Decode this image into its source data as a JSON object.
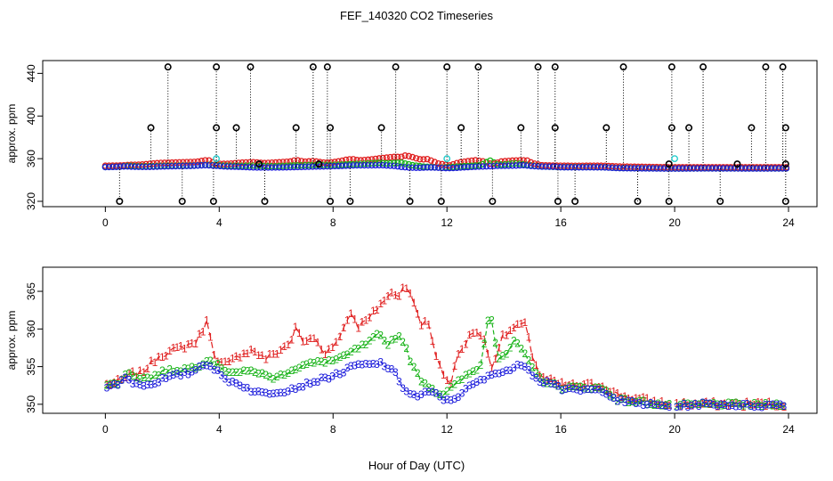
{
  "title": "FEF_140320  CO2 Timeseries",
  "xlabel": "Hour of Day (UTC)",
  "chart_data": [
    {
      "type": "scatter",
      "name": "top-panel",
      "ylabel": "approx. ppm",
      "xlim": [
        -2.2,
        25.0
      ],
      "ylim": [
        315,
        452
      ],
      "xticks": [
        0,
        4,
        8,
        12,
        16,
        20,
        24
      ],
      "yticks": [
        320,
        360,
        400,
        440
      ],
      "series": [
        {
          "name": "series-1",
          "color": "#e02020"
        },
        {
          "name": "series-2",
          "color": "#19b319"
        },
        {
          "name": "series-3",
          "color": "#1a1adb"
        },
        {
          "name": "series-4",
          "color": "#22cccc"
        },
        {
          "name": "flagged",
          "color": "#000000"
        }
      ],
      "flag_high": 446,
      "flag_mid": 389,
      "flag_low": 320,
      "flags": [
        [
          2.2,
          446
        ],
        [
          3.9,
          446
        ],
        [
          5.1,
          446
        ],
        [
          7.3,
          446
        ],
        [
          7.8,
          446
        ],
        [
          10.2,
          446
        ],
        [
          12.0,
          446
        ],
        [
          13.1,
          446
        ],
        [
          15.2,
          446
        ],
        [
          15.8,
          446
        ],
        [
          18.2,
          446
        ],
        [
          19.9,
          446
        ],
        [
          21.0,
          446
        ],
        [
          23.2,
          446
        ],
        [
          23.8,
          446
        ],
        [
          1.6,
          389
        ],
        [
          3.9,
          389
        ],
        [
          4.6,
          389
        ],
        [
          6.7,
          389
        ],
        [
          7.9,
          389
        ],
        [
          9.7,
          389
        ],
        [
          12.5,
          389
        ],
        [
          14.6,
          389
        ],
        [
          15.8,
          389
        ],
        [
          17.6,
          389
        ],
        [
          19.9,
          389
        ],
        [
          20.5,
          389
        ],
        [
          22.7,
          389
        ],
        [
          23.9,
          389
        ],
        [
          0.5,
          320
        ],
        [
          2.7,
          320
        ],
        [
          3.8,
          320
        ],
        [
          5.6,
          320
        ],
        [
          7.9,
          320
        ],
        [
          8.6,
          320
        ],
        [
          10.7,
          320
        ],
        [
          11.8,
          320
        ],
        [
          13.6,
          320
        ],
        [
          15.9,
          320
        ],
        [
          16.5,
          320
        ],
        [
          18.7,
          320
        ],
        [
          19.8,
          320
        ],
        [
          21.6,
          320
        ],
        [
          23.9,
          320
        ],
        [
          5.4,
          355
        ],
        [
          7.5,
          355
        ],
        [
          19.8,
          355
        ],
        [
          22.2,
          355
        ],
        [
          23.9,
          355
        ]
      ],
      "cyan_points": [
        [
          3.9,
          360
        ],
        [
          12.0,
          360
        ],
        [
          20.0,
          360
        ]
      ]
    },
    {
      "type": "line",
      "name": "bottom-panel",
      "ylabel": "approx. ppm",
      "xlim": [
        -2.2,
        25.0
      ],
      "ylim": [
        348.8,
        368.2
      ],
      "xticks": [
        0,
        4,
        8,
        12,
        16,
        20,
        24
      ],
      "yticks": [
        350,
        355,
        360,
        365
      ],
      "series": [
        {
          "name": "1",
          "color": "#e02020",
          "knots": [
            [
              0,
              352.6
            ],
            [
              0.5,
              353
            ],
            [
              0.9,
              354
            ],
            [
              1.2,
              354
            ],
            [
              1.5,
              355
            ],
            [
              1.9,
              356.5
            ],
            [
              2.3,
              357
            ],
            [
              2.7,
              357.6
            ],
            [
              3.2,
              358.3
            ],
            [
              3.6,
              361.2
            ],
            [
              3.7,
              359
            ],
            [
              3.9,
              355.5
            ],
            [
              4.3,
              355.3
            ],
            [
              4.8,
              356.8
            ],
            [
              5.2,
              357.2
            ],
            [
              5.6,
              356
            ],
            [
              6.0,
              356.8
            ],
            [
              6.5,
              358.2
            ],
            [
              6.7,
              360.2
            ],
            [
              7.0,
              358
            ],
            [
              7.3,
              359
            ],
            [
              7.7,
              356.9
            ],
            [
              8.0,
              357.6
            ],
            [
              8.3,
              359.5
            ],
            [
              8.5,
              361.5
            ],
            [
              8.7,
              362
            ],
            [
              8.9,
              360.3
            ],
            [
              9.3,
              361.5
            ],
            [
              9.7,
              363.5
            ],
            [
              10.1,
              364.8
            ],
            [
              10.4,
              364.5
            ],
            [
              10.5,
              366.3
            ],
            [
              10.7,
              365
            ],
            [
              10.9,
              362.5
            ],
            [
              11.1,
              360.5
            ],
            [
              11.3,
              361.5
            ],
            [
              11.7,
              355.3
            ],
            [
              12.1,
              352.5
            ],
            [
              12.4,
              356.5
            ],
            [
              12.7,
              358.5
            ],
            [
              13.0,
              360
            ],
            [
              13.3,
              358.5
            ],
            [
              13.6,
              354.8
            ],
            [
              13.9,
              358.7
            ],
            [
              14.3,
              360
            ],
            [
              14.6,
              360.5
            ],
            [
              14.8,
              360.5
            ],
            [
              15.0,
              356.5
            ],
            [
              15.3,
              353.5
            ],
            [
              16.0,
              352.6
            ],
            [
              16.5,
              352.4
            ],
            [
              17.0,
              352.5
            ],
            [
              17.5,
              352.5
            ],
            [
              18.0,
              351.2
            ],
            [
              19.0,
              350.5
            ],
            [
              19.8,
              350
            ]
          ]
        },
        {
          "name": "2",
          "color": "#19b319",
          "knots": [
            [
              0,
              352.3
            ],
            [
              0.5,
              353
            ],
            [
              0.8,
              354.2
            ],
            [
              1.2,
              353.5
            ],
            [
              1.6,
              353.5
            ],
            [
              2.0,
              354.3
            ],
            [
              2.5,
              354.5
            ],
            [
              3.0,
              354.8
            ],
            [
              3.3,
              355.2
            ],
            [
              3.6,
              356
            ],
            [
              3.9,
              355.2
            ],
            [
              4.3,
              354.4
            ],
            [
              4.8,
              354.2
            ],
            [
              5.2,
              354.5
            ],
            [
              5.6,
              353.8
            ],
            [
              6.0,
              353.5
            ],
            [
              6.5,
              354.5
            ],
            [
              7.0,
              355.2
            ],
            [
              7.5,
              355.6
            ],
            [
              8.0,
              355.8
            ],
            [
              8.4,
              356.3
            ],
            [
              8.8,
              357.3
            ],
            [
              9.2,
              358
            ],
            [
              9.6,
              359.3
            ],
            [
              9.9,
              358
            ],
            [
              10.2,
              358.9
            ],
            [
              10.4,
              359
            ],
            [
              10.6,
              357
            ],
            [
              10.8,
              355
            ],
            [
              11.1,
              353.2
            ],
            [
              11.4,
              352.3
            ],
            [
              11.8,
              351.2
            ],
            [
              12.2,
              352.3
            ],
            [
              12.5,
              353.3
            ],
            [
              12.9,
              354.3
            ],
            [
              13.2,
              355.2
            ],
            [
              13.5,
              362.8
            ],
            [
              13.8,
              356.2
            ],
            [
              14.1,
              356.8
            ],
            [
              14.4,
              358.5
            ],
            [
              14.7,
              356.8
            ],
            [
              15.0,
              354.7
            ],
            [
              15.3,
              353.3
            ],
            [
              16.0,
              352.2
            ],
            [
              17.0,
              352.2
            ],
            [
              17.5,
              352
            ],
            [
              18.0,
              350.6
            ],
            [
              19.0,
              350.2
            ],
            [
              19.8,
              349.8
            ],
            [
              20.0,
              349.8
            ],
            [
              21.0,
              350
            ],
            [
              22.0,
              350
            ],
            [
              23.0,
              349.9
            ],
            [
              23.9,
              350
            ]
          ]
        },
        {
          "name": "3",
          "color": "#1a1adb",
          "knots": [
            [
              0,
              352.2
            ],
            [
              0.4,
              352.6
            ],
            [
              0.7,
              353.5
            ],
            [
              1.0,
              352.8
            ],
            [
              1.5,
              352.5
            ],
            [
              2.0,
              353.3
            ],
            [
              2.5,
              353.8
            ],
            [
              3.0,
              354.2
            ],
            [
              3.5,
              355.5
            ],
            [
              3.8,
              354.8
            ],
            [
              4.2,
              353.3
            ],
            [
              4.8,
              352.5
            ],
            [
              5.3,
              351.5
            ],
            [
              5.8,
              351.5
            ],
            [
              6.3,
              351.8
            ],
            [
              6.8,
              352.3
            ],
            [
              7.3,
              353
            ],
            [
              7.8,
              353.5
            ],
            [
              8.3,
              354.2
            ],
            [
              8.8,
              355.2
            ],
            [
              9.3,
              355.2
            ],
            [
              9.7,
              355.5
            ],
            [
              10.0,
              354.6
            ],
            [
              10.2,
              354
            ],
            [
              10.4,
              352.5
            ],
            [
              10.7,
              351.3
            ],
            [
              11.0,
              351
            ],
            [
              11.3,
              351.6
            ],
            [
              11.6,
              351.4
            ],
            [
              12.0,
              350.4
            ],
            [
              12.3,
              350.8
            ],
            [
              12.6,
              351.8
            ],
            [
              13.0,
              352.8
            ],
            [
              13.4,
              353.5
            ],
            [
              13.8,
              354.3
            ],
            [
              14.2,
              354.5
            ],
            [
              14.7,
              355.4
            ],
            [
              15.0,
              354
            ],
            [
              15.3,
              353
            ],
            [
              15.8,
              352.8
            ],
            [
              16.0,
              352
            ],
            [
              16.5,
              351.8
            ],
            [
              17.0,
              351.9
            ],
            [
              17.5,
              351.8
            ],
            [
              18.0,
              350.5
            ],
            [
              18.5,
              350.2
            ],
            [
              19.0,
              350
            ],
            [
              19.8,
              349.7
            ],
            [
              20.0,
              349.7
            ],
            [
              21.0,
              350
            ],
            [
              22.0,
              349.9
            ],
            [
              23.0,
              349.8
            ],
            [
              23.9,
              350
            ]
          ]
        }
      ],
      "gap": [
        19.85,
        20.05
      ]
    }
  ]
}
